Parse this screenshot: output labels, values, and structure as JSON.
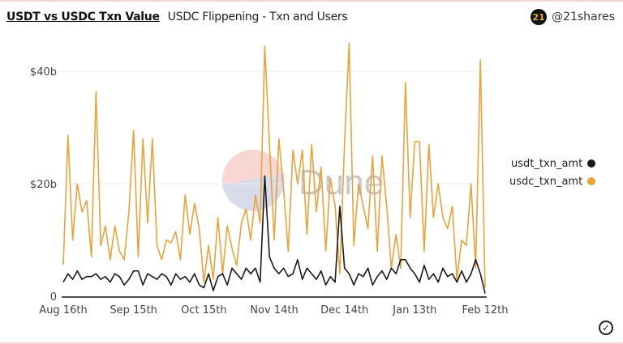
{
  "header": {
    "title": "USDT vs USDC Txn Value",
    "subtitle": "USDC Flippening - Txn and Users",
    "owner": "@21shares",
    "avatar_text": "21"
  },
  "watermark": "Dune",
  "chart_data": {
    "type": "line",
    "title": "USDT vs USDC Txn Value",
    "xlabel": "",
    "ylabel": "",
    "ylim": [
      0,
      40
    ],
    "yticks": [
      {
        "value": 0,
        "label": "0"
      },
      {
        "value": 20,
        "label": "$20b"
      },
      {
        "value": 40,
        "label": "$40b"
      }
    ],
    "xticks": [
      {
        "index": 0,
        "label": "Aug 16th"
      },
      {
        "index": 15,
        "label": "Sep 15th"
      },
      {
        "index": 30,
        "label": "Oct 15th"
      },
      {
        "index": 45,
        "label": "Nov 14th"
      },
      {
        "index": 60,
        "label": "Dec 14th"
      },
      {
        "index": 75,
        "label": "Jan 13th"
      },
      {
        "index": 90,
        "label": "Feb 12th"
      }
    ],
    "grid": true,
    "legend_position": "right",
    "x": [
      "Aug 16",
      "Aug 18",
      "Aug 20",
      "Aug 22",
      "Aug 24",
      "Aug 26",
      "Aug 28",
      "Aug 30",
      "Sep 1",
      "Sep 3",
      "Sep 5",
      "Sep 7",
      "Sep 9",
      "Sep 11",
      "Sep 13",
      "Sep 15",
      "Sep 17",
      "Sep 19",
      "Sep 21",
      "Sep 23",
      "Sep 25",
      "Sep 27",
      "Sep 29",
      "Oct 1",
      "Oct 3",
      "Oct 5",
      "Oct 7",
      "Oct 9",
      "Oct 11",
      "Oct 13",
      "Oct 15",
      "Oct 17",
      "Oct 19",
      "Oct 21",
      "Oct 23",
      "Oct 25",
      "Oct 27",
      "Oct 29",
      "Oct 31",
      "Nov 2",
      "Nov 4",
      "Nov 6",
      "Nov 8",
      "Nov 10",
      "Nov 12",
      "Nov 14",
      "Nov 16",
      "Nov 18",
      "Nov 20",
      "Nov 22",
      "Nov 24",
      "Nov 26",
      "Nov 28",
      "Nov 30",
      "Dec 2",
      "Dec 4",
      "Dec 6",
      "Dec 8",
      "Dec 10",
      "Dec 12",
      "Dec 14",
      "Dec 16",
      "Dec 18",
      "Dec 20",
      "Dec 22",
      "Dec 24",
      "Dec 26",
      "Dec 28",
      "Dec 30",
      "Jan 1",
      "Jan 3",
      "Jan 5",
      "Jan 7",
      "Jan 9",
      "Jan 11",
      "Jan 13",
      "Jan 15",
      "Jan 17",
      "Jan 19",
      "Jan 21",
      "Jan 23",
      "Jan 25",
      "Jan 27",
      "Jan 29",
      "Jan 31",
      "Feb 2",
      "Feb 4",
      "Feb 6",
      "Feb 8",
      "Feb 10",
      "Feb 12"
    ],
    "series": [
      {
        "name": "usdt_txn_amt",
        "color": "#1a1a1a",
        "values": [
          2.5,
          4,
          3,
          4.5,
          3,
          3.5,
          3.5,
          4,
          3,
          3.5,
          2.5,
          4,
          3.5,
          2,
          3,
          4.5,
          4.5,
          2,
          4,
          3.5,
          3,
          4,
          3.5,
          2,
          4,
          3,
          3.5,
          2.5,
          4,
          2,
          1.5,
          4,
          1,
          3.5,
          4,
          2,
          5,
          4,
          3,
          5,
          4,
          5,
          2.5,
          21.4,
          7,
          5,
          4,
          5,
          3.5,
          4,
          6.5,
          3,
          5,
          4,
          3,
          4.5,
          2,
          3.5,
          2.5,
          16,
          5,
          4,
          2,
          4,
          3.5,
          5,
          2,
          3.5,
          4.5,
          3,
          5,
          4,
          6.5,
          6.5,
          5,
          4,
          2.5,
          5.5,
          3,
          4,
          2.5,
          5,
          3.5,
          4,
          2.5,
          4.5,
          2.5,
          4,
          6.5,
          4,
          0.5
        ]
      },
      {
        "name": "usdc_txn_amt",
        "color": "#e8a33a",
        "values": [
          5.6,
          28.6,
          10,
          20,
          15,
          17,
          7,
          36.4,
          9,
          12.5,
          6.5,
          12.5,
          8,
          6.5,
          15,
          29.5,
          7,
          28,
          13,
          28,
          9,
          6.5,
          10,
          9.5,
          11.5,
          6.5,
          18,
          11,
          16.5,
          12,
          2.5,
          9,
          3,
          14,
          4,
          12.5,
          8.5,
          5.5,
          13,
          15.5,
          10,
          18,
          13,
          44.5,
          27,
          10,
          28,
          19,
          8,
          26,
          20,
          26,
          11,
          27,
          15,
          23,
          8,
          21,
          16,
          4,
          27,
          45,
          9,
          20,
          16,
          12,
          25,
          8,
          25,
          16,
          5,
          11,
          5,
          38,
          14,
          27.5,
          27.5,
          8,
          27,
          14,
          20,
          14,
          12,
          16,
          3,
          10,
          9,
          20,
          5,
          42,
          1.5
        ]
      }
    ]
  }
}
